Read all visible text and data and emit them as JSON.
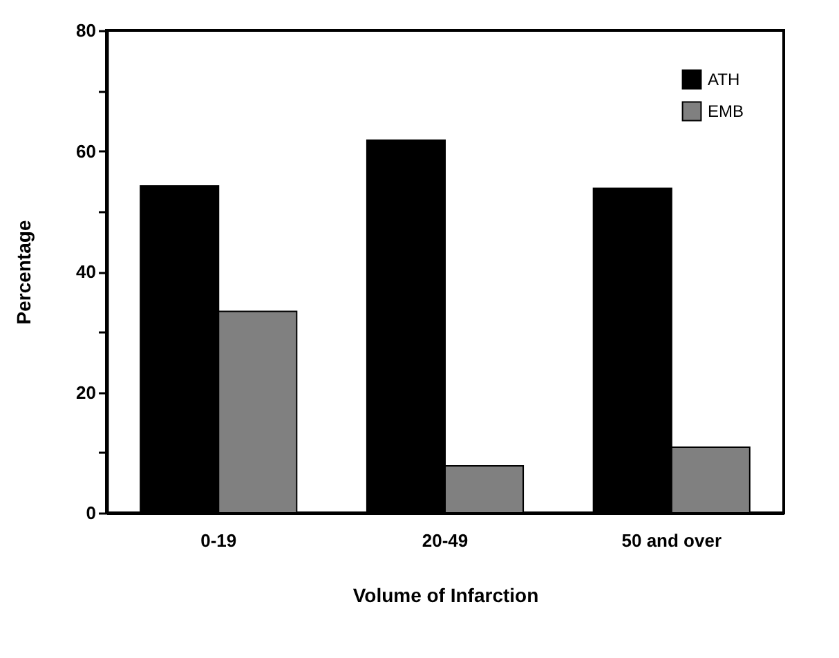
{
  "chart_data": {
    "type": "bar",
    "xlabel": "Volume of Infarction",
    "ylabel": "Percentage",
    "categories": [
      "0-19",
      "20-49",
      "50 and over"
    ],
    "series": [
      {
        "name": "ATH",
        "color": "#000000",
        "values": [
          54.2,
          61.8,
          53.8
        ]
      },
      {
        "name": "EMB",
        "color": "#808080",
        "values": [
          33.4,
          7.8,
          10.9
        ]
      }
    ],
    "ylim": [
      0,
      80
    ],
    "yticks": [
      0,
      {
        "value": 10,
        "label": null
      },
      20,
      {
        "value": 30,
        "label": null
      },
      40,
      {
        "value": 50,
        "label": null
      },
      60,
      {
        "value": 70,
        "label": null
      },
      80
    ],
    "grid": false,
    "legend": "top right"
  }
}
